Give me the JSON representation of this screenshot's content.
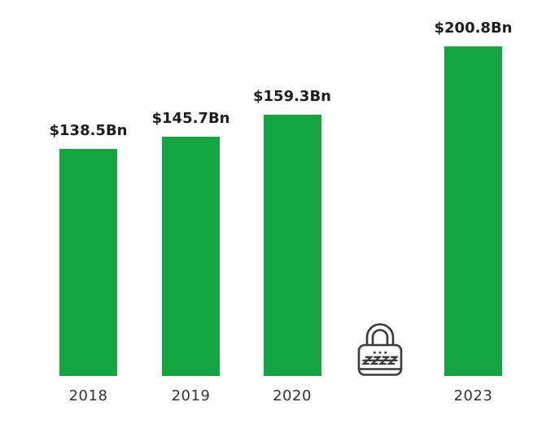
{
  "chart_data": {
    "type": "bar",
    "title": "",
    "xlabel": "",
    "ylabel": "",
    "unit": "USD billions",
    "categories": [
      "2018",
      "2019",
      "2020",
      "2023"
    ],
    "values": [
      138.5,
      145.7,
      159.3,
      200.8
    ],
    "value_labels": [
      "$138.5Bn",
      "$145.7Bn",
      "$159.3Bn",
      "$200.8Bn"
    ],
    "ylim": [
      0,
      210
    ],
    "grid": false,
    "legend": false,
    "slots": [
      {
        "kind": "bar",
        "category": "2018",
        "value": 138.5,
        "value_label": "$138.5Bn"
      },
      {
        "kind": "bar",
        "category": "2019",
        "value": 145.7,
        "value_label": "$145.7Bn"
      },
      {
        "kind": "bar",
        "category": "2020",
        "value": 159.3,
        "value_label": "$159.3Bn"
      },
      {
        "kind": "lock",
        "icon": "padlock-icon"
      },
      {
        "kind": "bar",
        "category": "2023",
        "value": 200.8,
        "value_label": "$200.8Bn"
      }
    ],
    "colors": {
      "bar": "#14A541",
      "value_label": "#1E1E1E",
      "year_label": "#333333",
      "lock_stroke": "#3A3A3A",
      "background": "#FFFFFF"
    }
  }
}
